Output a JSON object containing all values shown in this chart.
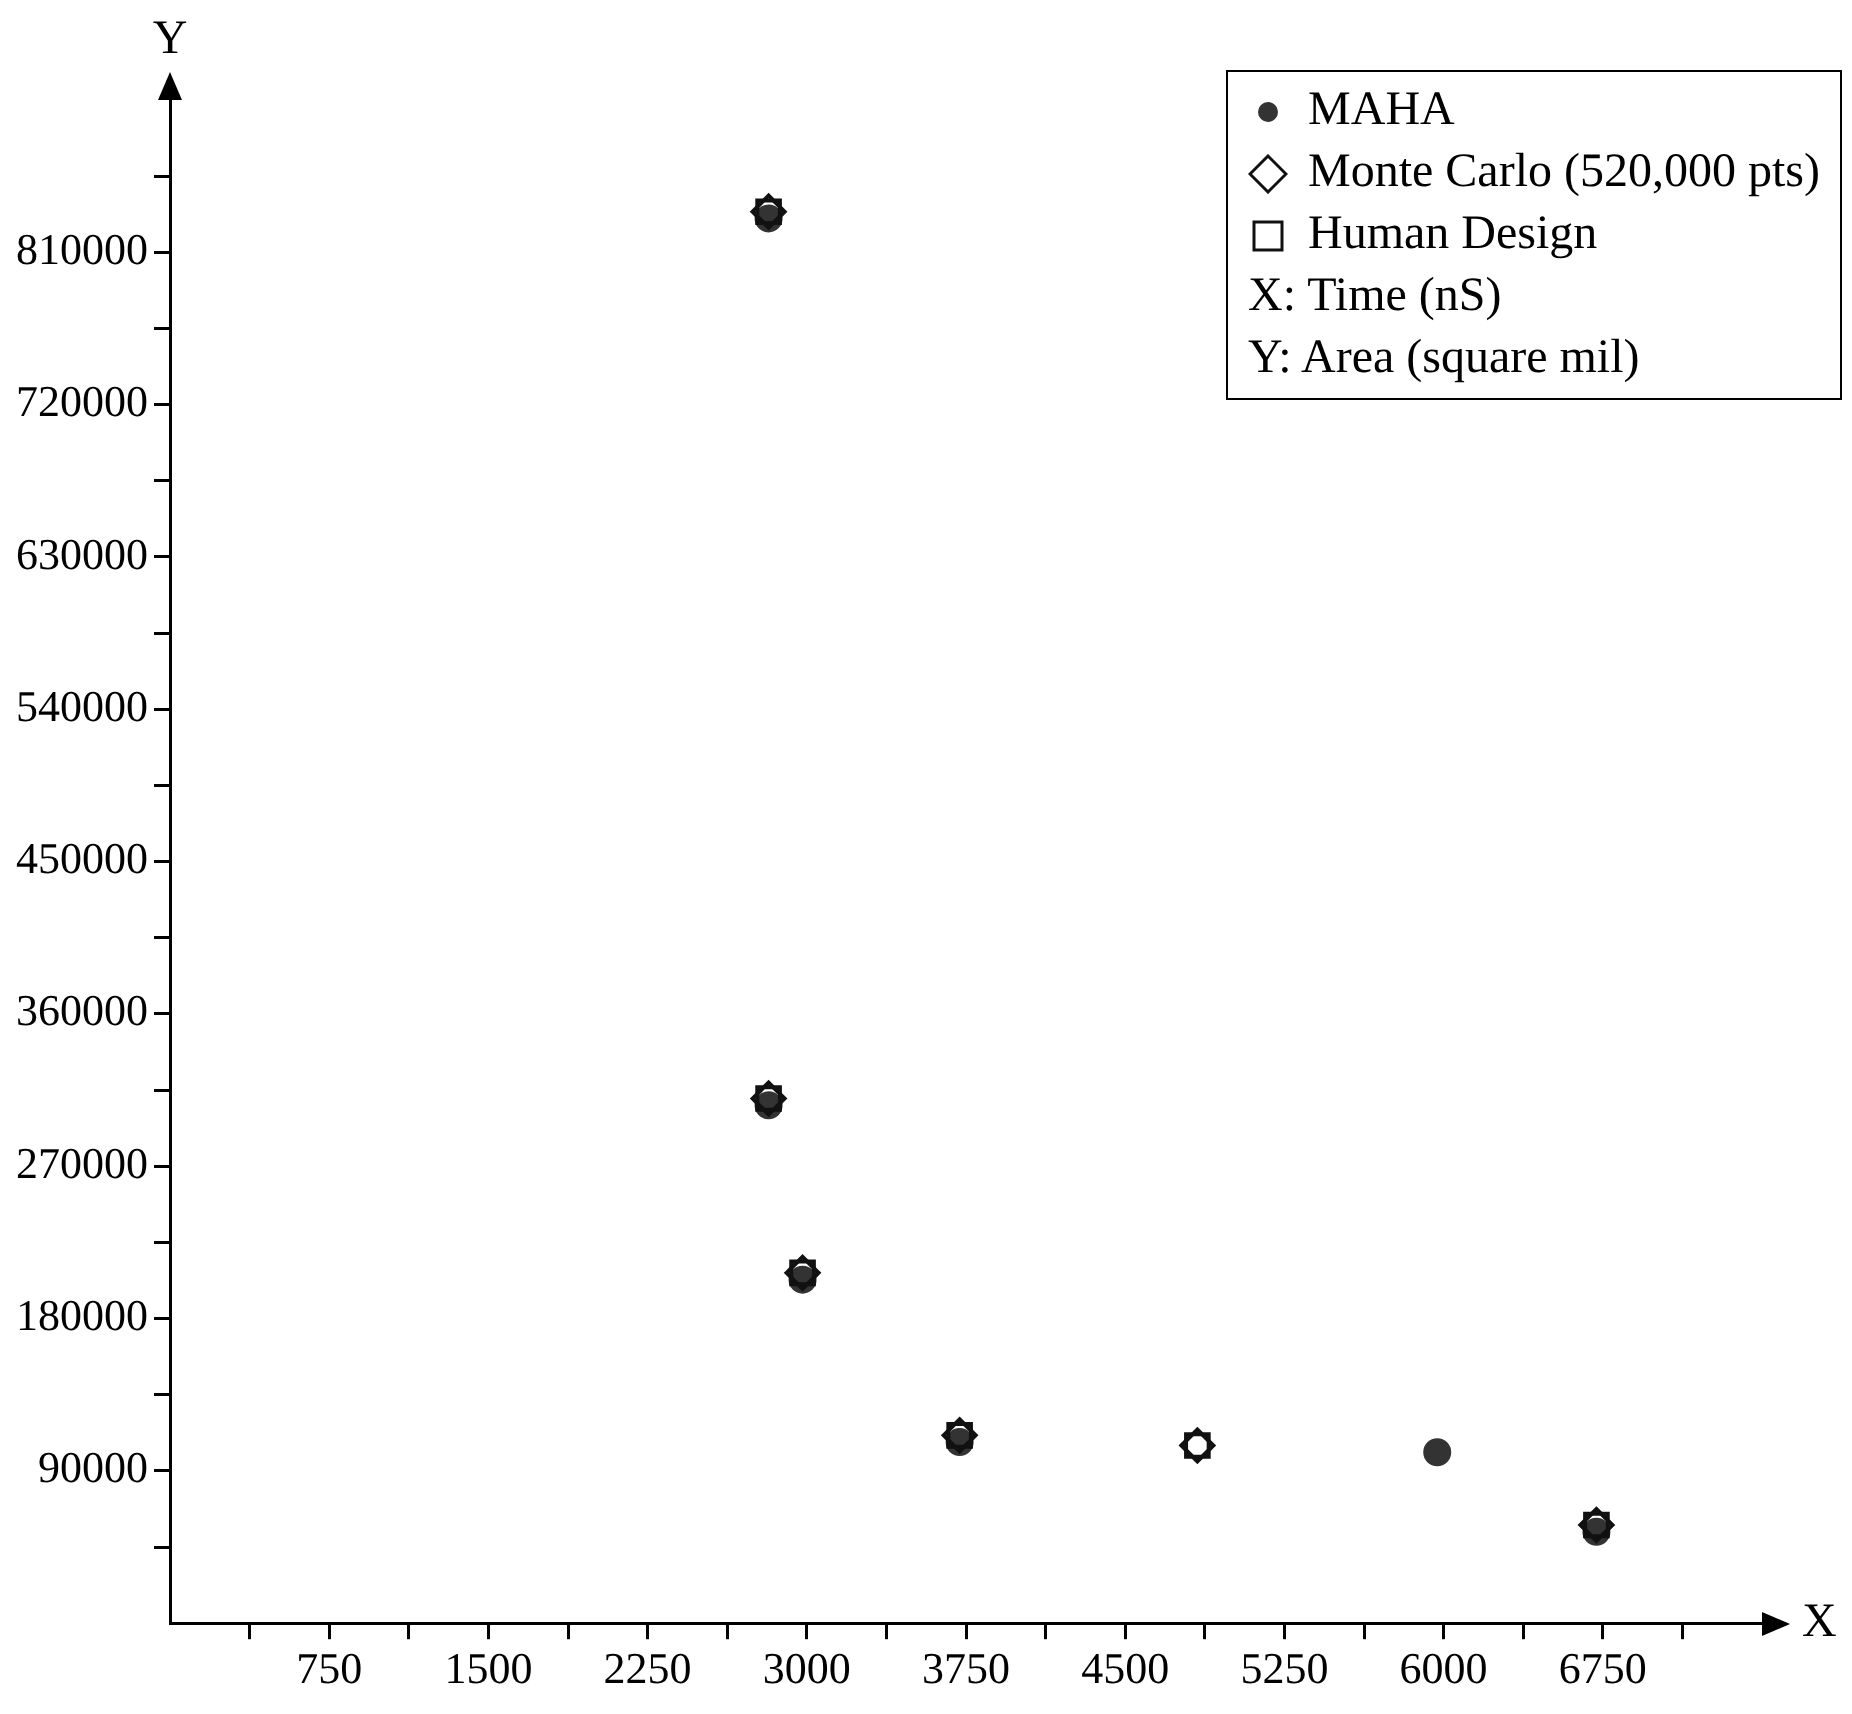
{
  "chart_data": {
    "type": "scatter",
    "xlabel": "X",
    "ylabel": "Y",
    "annotations": [
      "X: Time (nS)",
      "Y: Area (square mil)"
    ],
    "xlim": [
      0,
      7500
    ],
    "ylim": [
      0,
      900000
    ],
    "xticks": [
      {
        "value": 375,
        "label": null
      },
      750,
      {
        "value": 1125,
        "label": null
      },
      1500,
      {
        "value": 1875,
        "label": null
      },
      2250,
      {
        "value": 2625,
        "label": null
      },
      3000,
      {
        "value": 3375,
        "label": null
      },
      3750,
      {
        "value": 4125,
        "label": null
      },
      4500,
      {
        "value": 4875,
        "label": null
      },
      5250,
      {
        "value": 5625,
        "label": null
      },
      6000,
      {
        "value": 6375,
        "label": null
      },
      6750,
      {
        "value": 7125,
        "label": null
      }
    ],
    "yticks": [
      {
        "value": 45000,
        "label": null
      },
      90000,
      {
        "value": 135000,
        "label": null
      },
      180000,
      {
        "value": 225000,
        "label": null
      },
      270000,
      {
        "value": 315000,
        "label": null
      },
      360000,
      {
        "value": 405000,
        "label": null
      },
      450000,
      {
        "value": 495000,
        "label": null
      },
      540000,
      {
        "value": 585000,
        "label": null
      },
      630000,
      {
        "value": 675000,
        "label": null
      },
      720000,
      {
        "value": 765000,
        "label": null
      },
      810000,
      {
        "value": 855000,
        "label": null
      }
    ],
    "grid": false,
    "legend": "top right",
    "series": [
      {
        "name": "MAHA",
        "color": "#333333",
        "marker": "circle",
        "x": [
          2820,
          2820,
          2980,
          3720,
          5970,
          6720
        ],
        "values": [
          830000,
          306000,
          203000,
          107000,
          101000,
          54000
        ]
      },
      {
        "name": "Monte Carlo (520,000 pts)",
        "color": "#111111",
        "marker": "diamond",
        "x": [
          2820,
          2820,
          2980,
          3720,
          4840,
          6720
        ],
        "values": [
          834000,
          310000,
          207000,
          111000,
          105000,
          58000
        ]
      },
      {
        "name": "Human Design",
        "color": "#111111",
        "marker": "square",
        "x": [
          2820,
          2820,
          2980,
          3720,
          4840,
          6720
        ],
        "values": [
          834000,
          310000,
          207000,
          111000,
          105000,
          58000
        ]
      }
    ]
  }
}
